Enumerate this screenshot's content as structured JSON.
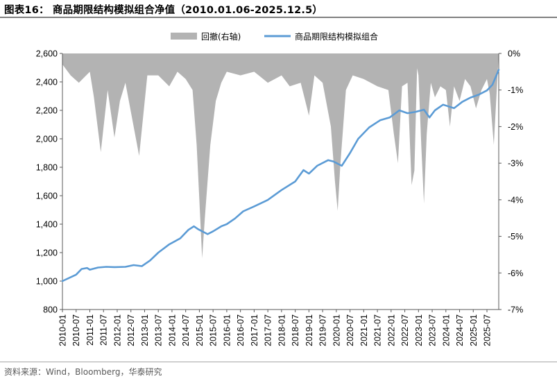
{
  "header": {
    "title": "图表16：  商品期限结构模拟组合净值（2010.01.06-2025.12.5）"
  },
  "footer": {
    "source": "资料来源：Wind，Bloomberg，华泰研究"
  },
  "colors": {
    "nav_line": "#5b9bd5",
    "drawdown_area": "#b3b3b3",
    "axis": "#595959"
  },
  "chart_data": {
    "type": "line",
    "title": "商品期限结构模拟组合净值（2010.01.06-2025.12.5）",
    "x_tick_labels": [
      "2010-01",
      "2010-07",
      "2011-01",
      "2011-07",
      "2012-01",
      "2012-07",
      "2013-01",
      "2013-07",
      "2014-01",
      "2014-07",
      "2015-01",
      "2015-07",
      "2016-01",
      "2016-07",
      "2017-01",
      "2017-07",
      "2018-01",
      "2018-07",
      "2019-01",
      "2019-07",
      "2020-01",
      "2020-07",
      "2021-01",
      "2021-07",
      "2022-01",
      "2022-07",
      "2023-01",
      "2023-07",
      "2024-01",
      "2024-07",
      "2025-01",
      "2025-07"
    ],
    "x_range": [
      2010.0,
      2025.93
    ],
    "y_left": {
      "range": [
        800,
        2600
      ],
      "ticks": [
        "800",
        "1,000",
        "1,200",
        "1,400",
        "1,600",
        "1,800",
        "2,000",
        "2,200",
        "2,400",
        "2,600"
      ]
    },
    "y_right": {
      "range": [
        -7,
        0
      ],
      "unit": "%",
      "ticks": [
        "-7%",
        "-6%",
        "-5%",
        "-4%",
        "-3%",
        "-2%",
        "-1%",
        "0%"
      ]
    },
    "legend": {
      "position": "top",
      "entries": [
        "回撤(右轴)",
        "商品期限结构模拟组合"
      ]
    },
    "series": [
      {
        "name": "商品期限结构模拟组合",
        "axis": "left",
        "style": "line",
        "x": [
          2010.0,
          2010.5,
          2010.7,
          2010.9,
          2011.0,
          2011.3,
          2011.6,
          2011.9,
          2012.3,
          2012.6,
          2012.9,
          2013.2,
          2013.5,
          2013.9,
          2014.3,
          2014.6,
          2014.8,
          2014.95,
          2015.3,
          2015.5,
          2015.8,
          2016.0,
          2016.3,
          2016.6,
          2017.0,
          2017.5,
          2018.0,
          2018.5,
          2018.8,
          2019.0,
          2019.3,
          2019.7,
          2019.9,
          2020.2,
          2020.5,
          2020.8,
          2021.2,
          2021.6,
          2021.95,
          2022.3,
          2022.6,
          2022.9,
          2023.2,
          2023.4,
          2023.6,
          2023.9,
          2024.3,
          2024.6,
          2024.9,
          2025.2,
          2025.5,
          2025.7,
          2025.93
        ],
        "values": [
          1000,
          1045,
          1085,
          1092,
          1080,
          1095,
          1100,
          1098,
          1100,
          1112,
          1105,
          1145,
          1200,
          1258,
          1300,
          1360,
          1385,
          1365,
          1330,
          1350,
          1385,
          1400,
          1440,
          1490,
          1525,
          1570,
          1640,
          1700,
          1780,
          1755,
          1810,
          1850,
          1840,
          1810,
          1900,
          2000,
          2080,
          2130,
          2150,
          2200,
          2180,
          2190,
          2205,
          2150,
          2200,
          2240,
          2215,
          2260,
          2290,
          2310,
          2340,
          2380,
          2485
        ]
      },
      {
        "name": "回撤(右轴)",
        "axis": "right",
        "style": "area",
        "x": [
          2010.0,
          2010.3,
          2010.6,
          2011.0,
          2011.15,
          2011.4,
          2011.65,
          2011.9,
          2012.1,
          2012.3,
          2012.5,
          2012.8,
          2013.1,
          2013.5,
          2013.9,
          2014.2,
          2014.5,
          2014.75,
          2014.9,
          2015.0,
          2015.1,
          2015.2,
          2015.4,
          2015.6,
          2015.8,
          2016.0,
          2016.5,
          2017.0,
          2017.5,
          2018.0,
          2018.3,
          2018.7,
          2019.0,
          2019.2,
          2019.5,
          2019.8,
          2019.95,
          2020.05,
          2020.15,
          2020.35,
          2020.6,
          2021.0,
          2021.5,
          2021.9,
          2022.1,
          2022.25,
          2022.4,
          2022.6,
          2022.75,
          2022.85,
          2022.95,
          2023.0,
          2023.1,
          2023.2,
          2023.3,
          2023.45,
          2023.6,
          2023.8,
          2024.0,
          2024.15,
          2024.3,
          2024.5,
          2024.7,
          2024.9,
          2025.1,
          2025.3,
          2025.5,
          2025.6,
          2025.75,
          2025.93
        ],
        "values": [
          -0.3,
          -0.6,
          -0.8,
          -0.5,
          -1.2,
          -2.7,
          -1.0,
          -2.3,
          -1.3,
          -0.8,
          -1.6,
          -2.8,
          -0.6,
          -0.6,
          -0.9,
          -0.5,
          -0.7,
          -1.0,
          -2.5,
          -4.0,
          -5.6,
          -4.5,
          -2.5,
          -1.3,
          -0.8,
          -0.5,
          -0.6,
          -0.5,
          -0.8,
          -0.6,
          -0.9,
          -0.8,
          -1.7,
          -0.6,
          -0.8,
          -2.0,
          -3.5,
          -4.3,
          -3.0,
          -1.0,
          -0.6,
          -0.7,
          -0.9,
          -1.0,
          -2.2,
          -3.0,
          -0.9,
          -0.8,
          -3.6,
          -3.2,
          -0.4,
          -0.6,
          -2.5,
          -4.1,
          -2.2,
          -0.8,
          -1.2,
          -0.9,
          -1.0,
          -2.0,
          -0.9,
          -1.3,
          -0.7,
          -0.9,
          -1.5,
          -1.0,
          -0.7,
          -1.1,
          -2.5,
          0
        ]
      }
    ],
    "grid": false
  }
}
